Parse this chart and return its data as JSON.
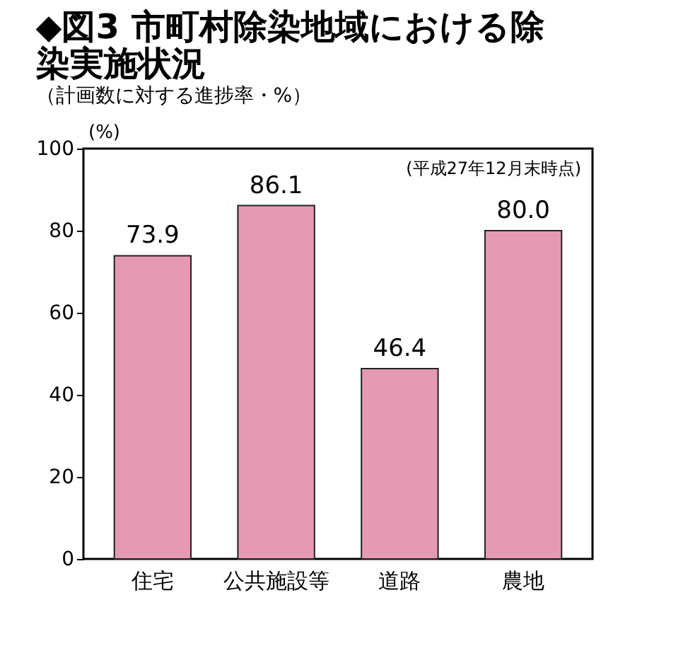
{
  "chart_data": {
    "type": "bar",
    "title": "◆図3 市町村除染地域における除染実施状況",
    "subtitle": "（計画数に対する進捗率・%）",
    "ylabel": "(%)",
    "annotations": [
      "(平成27年12月末時点)"
    ],
    "categories": [
      "住宅",
      "公共施設等",
      "道路",
      "農地"
    ],
    "values": [
      73.9,
      86.1,
      46.4,
      80.0
    ],
    "value_labels": [
      "73.9",
      "86.1",
      "46.4",
      "80.0"
    ],
    "color": "#e59ab4",
    "ylim": [
      0,
      100
    ],
    "yticks": [
      0,
      20,
      40,
      60,
      80,
      100
    ],
    "grid": false
  }
}
